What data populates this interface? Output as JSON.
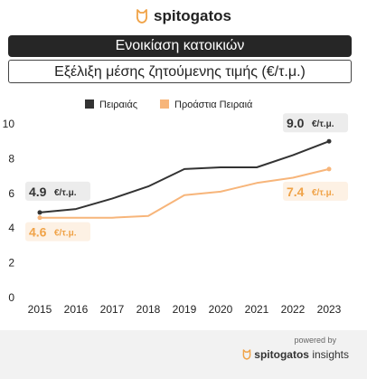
{
  "brand": {
    "name": "spitogatos",
    "logo_icon": "cat-logo-icon"
  },
  "banner": {
    "title": "Ενοικίαση κατοικιών"
  },
  "subtitle": "Εξέλιξη μέσης ζητούμενης τιμής (€/τ.μ.)",
  "footer": {
    "powered_by": "powered by",
    "brand_name": "spitogatos",
    "brand_suffix": "insights"
  },
  "colors": {
    "piraeus": "#333333",
    "suburbs": "#f7b57a",
    "suburbs_label": "#f0a348",
    "banner_bg": "#262626"
  },
  "chart_data": {
    "type": "line",
    "x": [
      2015,
      2016,
      2017,
      2018,
      2019,
      2020,
      2021,
      2022,
      2023
    ],
    "ylim": [
      0,
      10
    ],
    "yticks": [
      0,
      2,
      4,
      6,
      8,
      10
    ],
    "grid": false,
    "legend": "top-center",
    "series": [
      {
        "name": "Πειραιάς",
        "values": [
          4.9,
          5.1,
          5.7,
          6.4,
          7.4,
          7.5,
          7.5,
          8.2,
          9.0
        ]
      },
      {
        "name": "Προάστια Πειραιά",
        "values": [
          4.6,
          4.6,
          4.6,
          4.7,
          5.9,
          6.1,
          6.6,
          6.9,
          7.4
        ]
      }
    ],
    "annotations": [
      {
        "series": 0,
        "point": "first",
        "value": "4.9",
        "unit": "€/τ.μ."
      },
      {
        "series": 0,
        "point": "last",
        "value": "9.0",
        "unit": "€/τ.μ."
      },
      {
        "series": 1,
        "point": "first",
        "value": "4.6",
        "unit": "€/τ.μ."
      },
      {
        "series": 1,
        "point": "last",
        "value": "7.4",
        "unit": "€/τ.μ."
      }
    ]
  }
}
